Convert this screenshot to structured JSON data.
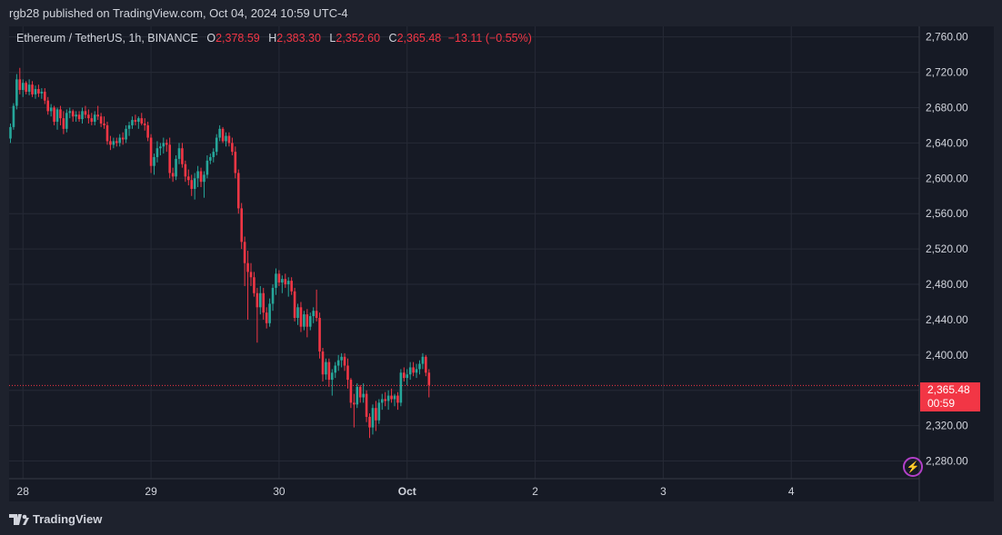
{
  "header": {
    "publisher_text": "rgb28 published on TradingView.com, Oct 04, 2024 10:59 UTC-4"
  },
  "legend": {
    "symbol": "Ethereum / TetherUS, 1h, BINANCE",
    "open_label": "O",
    "open_value": "2,378.59",
    "high_label": "H",
    "high_value": "2,383.30",
    "low_label": "L",
    "low_value": "2,352.60",
    "close_label": "C",
    "close_value": "2,365.48",
    "change": "−13.11 (−0.55%)"
  },
  "price_tag": {
    "price": "2,365.48",
    "countdown": "00:59"
  },
  "footer": {
    "brand": "TradingView"
  },
  "colors": {
    "up": "#26a69a",
    "down": "#f23645",
    "grid": "#262a36",
    "background": "#161a25",
    "text": "#d1d4dc"
  },
  "icons": {
    "brand_logo": "tradingview-logo-icon",
    "alert": "lightning-bolt-icon"
  },
  "chart_data": {
    "type": "candlestick",
    "last_price": 2365.48,
    "ylim": [
      2260,
      2772
    ],
    "y_ticks": [
      2280,
      2320,
      2360,
      2400,
      2440,
      2480,
      2520,
      2560,
      2600,
      2640,
      2680,
      2720,
      2760
    ],
    "y_tick_labels": [
      "2,280.00",
      "2,320.00",
      "2,360.00",
      "2,400.00",
      "2,440.00",
      "2,480.00",
      "2,520.00",
      "2,560.00",
      "2,600.00",
      "2,640.00",
      "2,680.00",
      "2,720.00",
      "2,760.00"
    ],
    "x_ticks": [
      4,
      45,
      86,
      127,
      168,
      209,
      250
    ],
    "x_tick_labels": [
      "28",
      "29",
      "30",
      "Oct",
      "2",
      "3",
      "4"
    ],
    "candles": [
      [
        2645,
        2662,
        2640,
        2658
      ],
      [
        2658,
        2685,
        2655,
        2682
      ],
      [
        2682,
        2718,
        2678,
        2712
      ],
      [
        2712,
        2725,
        2695,
        2700
      ],
      [
        2700,
        2712,
        2692,
        2708
      ],
      [
        2708,
        2710,
        2695,
        2698
      ],
      [
        2698,
        2712,
        2694,
        2706
      ],
      [
        2706,
        2710,
        2692,
        2695
      ],
      [
        2695,
        2705,
        2690,
        2701
      ],
      [
        2701,
        2706,
        2692,
        2696
      ],
      [
        2696,
        2702,
        2690,
        2698
      ],
      [
        2698,
        2702,
        2684,
        2688
      ],
      [
        2688,
        2692,
        2672,
        2676
      ],
      [
        2676,
        2684,
        2670,
        2680
      ],
      [
        2680,
        2682,
        2660,
        2664
      ],
      [
        2664,
        2680,
        2655,
        2678
      ],
      [
        2678,
        2682,
        2660,
        2668
      ],
      [
        2668,
        2676,
        2650,
        2656
      ],
      [
        2656,
        2678,
        2652,
        2674
      ],
      [
        2674,
        2680,
        2668,
        2676
      ],
      [
        2676,
        2678,
        2664,
        2670
      ],
      [
        2670,
        2676,
        2664,
        2672
      ],
      [
        2672,
        2676,
        2664,
        2667
      ],
      [
        2667,
        2680,
        2662,
        2676
      ],
      [
        2676,
        2682,
        2668,
        2672
      ],
      [
        2672,
        2678,
        2662,
        2668
      ],
      [
        2668,
        2674,
        2660,
        2664
      ],
      [
        2664,
        2676,
        2660,
        2672
      ],
      [
        2672,
        2682,
        2666,
        2670
      ],
      [
        2670,
        2674,
        2658,
        2662
      ],
      [
        2662,
        2670,
        2656,
        2660
      ],
      [
        2660,
        2664,
        2638,
        2642
      ],
      [
        2642,
        2648,
        2632,
        2638
      ],
      [
        2638,
        2646,
        2634,
        2642
      ],
      [
        2642,
        2646,
        2636,
        2640
      ],
      [
        2640,
        2650,
        2636,
        2646
      ],
      [
        2646,
        2652,
        2638,
        2644
      ],
      [
        2644,
        2660,
        2640,
        2656
      ],
      [
        2656,
        2664,
        2648,
        2660
      ],
      [
        2660,
        2670,
        2656,
        2666
      ],
      [
        2666,
        2672,
        2660,
        2664
      ],
      [
        2664,
        2670,
        2656,
        2668
      ],
      [
        2668,
        2674,
        2660,
        2662
      ],
      [
        2662,
        2668,
        2654,
        2660
      ],
      [
        2660,
        2664,
        2642,
        2646
      ],
      [
        2646,
        2650,
        2606,
        2614
      ],
      [
        2614,
        2628,
        2604,
        2624
      ],
      [
        2624,
        2642,
        2618,
        2634
      ],
      [
        2634,
        2640,
        2626,
        2636
      ],
      [
        2636,
        2646,
        2628,
        2640
      ],
      [
        2640,
        2644,
        2630,
        2638
      ],
      [
        2638,
        2646,
        2600,
        2606
      ],
      [
        2606,
        2612,
        2596,
        2602
      ],
      [
        2602,
        2626,
        2598,
        2622
      ],
      [
        2622,
        2640,
        2616,
        2634
      ],
      [
        2634,
        2640,
        2612,
        2616
      ],
      [
        2616,
        2620,
        2596,
        2602
      ],
      [
        2602,
        2610,
        2592,
        2598
      ],
      [
        2598,
        2604,
        2580,
        2588
      ],
      [
        2588,
        2606,
        2576,
        2600
      ],
      [
        2600,
        2614,
        2590,
        2608
      ],
      [
        2608,
        2612,
        2590,
        2596
      ],
      [
        2596,
        2608,
        2578,
        2604
      ],
      [
        2604,
        2626,
        2600,
        2620
      ],
      [
        2620,
        2628,
        2616,
        2624
      ],
      [
        2624,
        2634,
        2618,
        2630
      ],
      [
        2630,
        2650,
        2626,
        2646
      ],
      [
        2646,
        2660,
        2642,
        2656
      ],
      [
        2656,
        2658,
        2640,
        2642
      ],
      [
        2642,
        2652,
        2636,
        2648
      ],
      [
        2648,
        2652,
        2636,
        2640
      ],
      [
        2640,
        2646,
        2626,
        2630
      ],
      [
        2630,
        2636,
        2600,
        2606
      ],
      [
        2606,
        2610,
        2560,
        2566
      ],
      [
        2566,
        2572,
        2520,
        2528
      ],
      [
        2528,
        2534,
        2478,
        2504
      ],
      [
        2504,
        2518,
        2440,
        2494
      ],
      [
        2494,
        2504,
        2478,
        2488
      ],
      [
        2488,
        2494,
        2466,
        2470
      ],
      [
        2470,
        2476,
        2414,
        2454
      ],
      [
        2454,
        2478,
        2446,
        2470
      ],
      [
        2470,
        2476,
        2440,
        2448
      ],
      [
        2448,
        2454,
        2430,
        2436
      ],
      [
        2436,
        2464,
        2432,
        2458
      ],
      [
        2458,
        2480,
        2450,
        2476
      ],
      [
        2476,
        2498,
        2468,
        2492
      ],
      [
        2492,
        2496,
        2478,
        2482
      ],
      [
        2482,
        2490,
        2470,
        2486
      ],
      [
        2486,
        2492,
        2476,
        2480
      ],
      [
        2480,
        2488,
        2466,
        2484
      ],
      [
        2484,
        2488,
        2468,
        2472
      ],
      [
        2472,
        2476,
        2438,
        2442
      ],
      [
        2442,
        2458,
        2434,
        2454
      ],
      [
        2454,
        2460,
        2426,
        2432
      ],
      [
        2432,
        2450,
        2428,
        2446
      ],
      [
        2446,
        2452,
        2420,
        2432
      ],
      [
        2432,
        2448,
        2428,
        2444
      ],
      [
        2444,
        2454,
        2436,
        2450
      ],
      [
        2450,
        2474,
        2438,
        2442
      ],
      [
        2442,
        2448,
        2396,
        2404
      ],
      [
        2404,
        2408,
        2370,
        2378
      ],
      [
        2378,
        2396,
        2372,
        2392
      ],
      [
        2392,
        2396,
        2364,
        2372
      ],
      [
        2372,
        2384,
        2354,
        2380
      ],
      [
        2380,
        2392,
        2374,
        2388
      ],
      [
        2388,
        2400,
        2382,
        2394
      ],
      [
        2394,
        2402,
        2386,
        2398
      ],
      [
        2398,
        2402,
        2382,
        2388
      ],
      [
        2388,
        2396,
        2362,
        2372
      ],
      [
        2372,
        2374,
        2340,
        2346
      ],
      [
        2346,
        2356,
        2318,
        2344
      ],
      [
        2344,
        2368,
        2340,
        2364
      ],
      [
        2364,
        2366,
        2346,
        2352
      ],
      [
        2352,
        2368,
        2346,
        2356
      ],
      [
        2356,
        2360,
        2324,
        2330
      ],
      [
        2330,
        2334,
        2306,
        2318
      ],
      [
        2318,
        2344,
        2310,
        2340
      ],
      [
        2340,
        2348,
        2314,
        2326
      ],
      [
        2326,
        2350,
        2322,
        2346
      ],
      [
        2346,
        2356,
        2338,
        2350
      ],
      [
        2350,
        2358,
        2342,
        2348
      ],
      [
        2348,
        2360,
        2338,
        2354
      ],
      [
        2354,
        2362,
        2346,
        2350
      ],
      [
        2350,
        2356,
        2342,
        2354
      ],
      [
        2354,
        2358,
        2338,
        2346
      ],
      [
        2346,
        2384,
        2342,
        2380
      ],
      [
        2380,
        2386,
        2370,
        2374
      ],
      [
        2374,
        2384,
        2366,
        2378
      ],
      [
        2378,
        2392,
        2372,
        2386
      ],
      [
        2386,
        2392,
        2376,
        2380
      ],
      [
        2380,
        2390,
        2374,
        2384
      ],
      [
        2384,
        2394,
        2378,
        2390
      ],
      [
        2390,
        2402,
        2384,
        2398
      ],
      [
        2398,
        2400,
        2376,
        2380
      ],
      [
        2380,
        2384,
        2352,
        2366
      ]
    ]
  }
}
